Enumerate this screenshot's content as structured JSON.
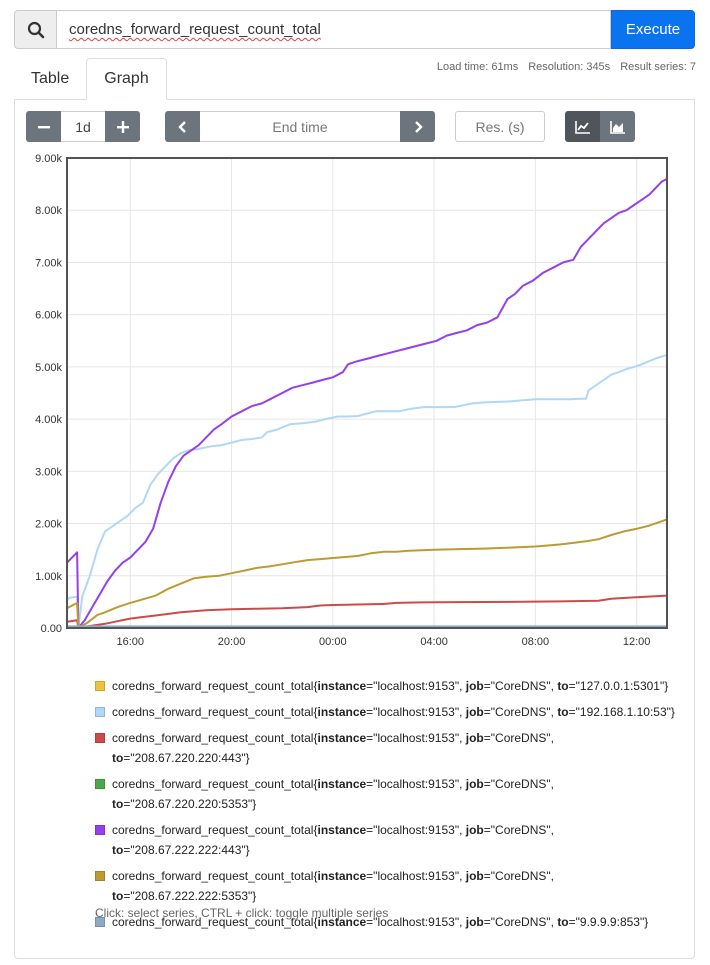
{
  "query": {
    "value": "coredns_forward_request_count_total",
    "execute_label": "Execute",
    "search_icon": "search-icon"
  },
  "tabs": [
    {
      "label": "Table",
      "active": false
    },
    {
      "label": "Graph",
      "active": true
    }
  ],
  "stats": {
    "load_time": "Load time: 61ms",
    "resolution": "Resolution: 345s",
    "result_series": "Result series: 7"
  },
  "controls": {
    "range_value": "1d",
    "minus_label": "−",
    "plus_label": "+",
    "end_time_placeholder": "End time",
    "res_placeholder": "Res. (s)",
    "line_icon": "line-chart-icon",
    "stacked_icon": "area-chart-icon"
  },
  "chart_data": {
    "type": "line",
    "x_ticks": [
      "16:00",
      "20:00",
      "00:00",
      "04:00",
      "08:00",
      "12:00"
    ],
    "y_ticks": [
      "0.00",
      "1.00k",
      "2.00k",
      "3.00k",
      "4.00k",
      "5.00k",
      "6.00k",
      "7.00k",
      "8.00k",
      "9.00k"
    ],
    "x_range_hours": [
      13.5,
      37.2
    ],
    "ylim": [
      0,
      9000
    ],
    "grid": true,
    "series": [
      {
        "name": "127.0.0.1:5301",
        "color": "#edc240",
        "x": [
          13.5,
          13.95,
          14.0,
          14.5,
          37.2
        ],
        "y": [
          20,
          20,
          0,
          0,
          0
        ]
      },
      {
        "name": "192.168.1.10:53",
        "color": "#afd8f8",
        "x": [
          13.5,
          13.6,
          13.9,
          13.95,
          14.1,
          14.4,
          14.7,
          15.0,
          15.3,
          15.6,
          15.9,
          16.2,
          16.5,
          16.8,
          17.1,
          17.4,
          17.7,
          18.0,
          18.3,
          18.6,
          18.9,
          19.2,
          19.6,
          20.0,
          20.4,
          20.8,
          21.2,
          21.4,
          21.8,
          22.3,
          22.8,
          23.3,
          23.7,
          24.2,
          24.6,
          25.0,
          25.3,
          25.7,
          26.1,
          26.6,
          27.1,
          27.6,
          28.1,
          28.5,
          28.8,
          29.1,
          29.5,
          30.0,
          30.5,
          31.0,
          31.5,
          32.0,
          32.5,
          33.0,
          33.4,
          33.7,
          34.0,
          34.1,
          34.4,
          34.7,
          35.0,
          35.3,
          35.6,
          35.9,
          36.2,
          36.5,
          36.8,
          37.2
        ],
        "y": [
          530,
          580,
          600,
          0,
          600,
          1000,
          1500,
          1850,
          1950,
          2050,
          2150,
          2300,
          2400,
          2750,
          2950,
          3100,
          3250,
          3350,
          3400,
          3420,
          3450,
          3480,
          3500,
          3550,
          3600,
          3620,
          3650,
          3750,
          3800,
          3900,
          3920,
          3950,
          4000,
          4050,
          4050,
          4060,
          4100,
          4150,
          4150,
          4150,
          4200,
          4230,
          4230,
          4230,
          4230,
          4260,
          4300,
          4320,
          4330,
          4340,
          4360,
          4380,
          4380,
          4380,
          4380,
          4390,
          4390,
          4550,
          4650,
          4750,
          4850,
          4900,
          4960,
          5000,
          5050,
          5110,
          5170,
          5230
        ]
      },
      {
        "name": "208.67.220.220:443",
        "color": "#cb4b4b",
        "x": [
          13.5,
          13.9,
          13.95,
          14.3,
          15.0,
          15.5,
          16.0,
          16.5,
          17.0,
          17.5,
          18.0,
          18.5,
          19.0,
          19.5,
          20.0,
          21.0,
          22.0,
          23.0,
          23.5,
          24.0,
          25.0,
          26.0,
          26.5,
          27.5,
          29.0,
          31.0,
          33.0,
          34.5,
          35.0,
          36.0,
          37.2
        ],
        "y": [
          120,
          150,
          0,
          30,
          80,
          130,
          180,
          210,
          240,
          270,
          300,
          320,
          340,
          350,
          360,
          370,
          380,
          400,
          430,
          440,
          450,
          460,
          480,
          490,
          495,
          500,
          510,
          520,
          560,
          590,
          620
        ]
      },
      {
        "name": "208.67.220.220:5353",
        "color": "#4da74d",
        "x": [
          13.5,
          13.95,
          14.0,
          37.2
        ],
        "y": [
          10,
          10,
          0,
          0
        ]
      },
      {
        "name": "208.67.222.222:443",
        "color": "#9440ed",
        "x": [
          13.5,
          13.9,
          13.95,
          14.2,
          14.5,
          14.8,
          15.1,
          15.4,
          15.7,
          16.0,
          16.3,
          16.6,
          16.9,
          17.2,
          17.5,
          17.8,
          18.1,
          18.4,
          18.7,
          19.0,
          19.3,
          19.6,
          20.0,
          20.4,
          20.8,
          21.2,
          21.6,
          22.0,
          22.4,
          22.8,
          23.2,
          23.6,
          24.0,
          24.4,
          24.6,
          24.9,
          25.3,
          25.7,
          26.1,
          26.5,
          26.9,
          27.3,
          27.7,
          28.1,
          28.5,
          28.9,
          29.3,
          29.7,
          30.1,
          30.5,
          30.9,
          31.2,
          31.5,
          31.9,
          32.3,
          32.7,
          33.1,
          33.5,
          33.8,
          34.1,
          34.4,
          34.7,
          35.0,
          35.3,
          35.6,
          35.9,
          36.2,
          36.5,
          36.8,
          37.0,
          37.2
        ],
        "y": [
          1250,
          1450,
          0,
          150,
          400,
          650,
          900,
          1100,
          1250,
          1350,
          1500,
          1650,
          1900,
          2400,
          2800,
          3100,
          3300,
          3400,
          3500,
          3650,
          3800,
          3900,
          4050,
          4150,
          4250,
          4300,
          4400,
          4500,
          4600,
          4650,
          4700,
          4750,
          4800,
          4900,
          5050,
          5100,
          5150,
          5200,
          5250,
          5300,
          5350,
          5400,
          5450,
          5500,
          5600,
          5650,
          5700,
          5800,
          5850,
          5950,
          6300,
          6400,
          6550,
          6650,
          6800,
          6900,
          7000,
          7050,
          7300,
          7450,
          7600,
          7750,
          7850,
          7950,
          8000,
          8100,
          8200,
          8300,
          8450,
          8550,
          8600
        ]
      },
      {
        "name": "208.67.222.222:5353",
        "color": "#bd9b33",
        "x": [
          13.5,
          13.9,
          13.95,
          14.3,
          14.7,
          15.0,
          15.5,
          16.0,
          16.5,
          17.0,
          17.5,
          18.0,
          18.5,
          19.0,
          19.5,
          20.0,
          20.5,
          21.0,
          21.5,
          22.0,
          22.5,
          23.0,
          23.5,
          24.0,
          24.5,
          25.0,
          25.5,
          26.0,
          26.5,
          27.0,
          27.5,
          28.0,
          29.0,
          30.0,
          31.0,
          32.0,
          32.5,
          33.0,
          33.5,
          34.0,
          34.5,
          35.0,
          35.5,
          36.0,
          36.5,
          37.2
        ],
        "y": [
          380,
          480,
          0,
          100,
          250,
          300,
          400,
          480,
          550,
          620,
          750,
          850,
          950,
          980,
          1000,
          1050,
          1100,
          1150,
          1180,
          1220,
          1260,
          1300,
          1320,
          1340,
          1360,
          1380,
          1430,
          1460,
          1460,
          1480,
          1490,
          1500,
          1510,
          1520,
          1540,
          1560,
          1580,
          1600,
          1630,
          1660,
          1700,
          1780,
          1850,
          1900,
          1960,
          2080
        ]
      },
      {
        "name": "9.9.9.9:853",
        "color": "#8cacc6",
        "x": [
          13.5,
          13.95,
          14.0,
          37.2
        ],
        "y": [
          30,
          30,
          30,
          30
        ]
      }
    ]
  },
  "legend": {
    "items": [
      {
        "color": "#edc240",
        "metric": "coredns_forward_request_count_total{",
        "k1": "instance",
        "v1": "=\"localhost:9153\", ",
        "k2": "job",
        "v2": "=\"CoreDNS\", ",
        "k3": "to",
        "v3": "=\"127.0.0.1:5301\"}"
      },
      {
        "color": "#afd8f8",
        "metric": "coredns_forward_request_count_total{",
        "k1": "instance",
        "v1": "=\"localhost:9153\", ",
        "k2": "job",
        "v2": "=\"CoreDNS\", ",
        "k3": "to",
        "v3": "=\"192.168.1.10:53\"}"
      },
      {
        "color": "#cb4b4b",
        "metric": "coredns_forward_request_count_total{",
        "k1": "instance",
        "v1": "=\"localhost:9153\", ",
        "k2": "job",
        "v2": "=\"CoreDNS\", ",
        "k3": "to",
        "v3": "=\"208.67.220.220:443\"}"
      },
      {
        "color": "#4da74d",
        "metric": "coredns_forward_request_count_total{",
        "k1": "instance",
        "v1": "=\"localhost:9153\", ",
        "k2": "job",
        "v2": "=\"CoreDNS\", ",
        "k3": "to",
        "v3": "=\"208.67.220.220:5353\"}"
      },
      {
        "color": "#9440ed",
        "metric": "coredns_forward_request_count_total{",
        "k1": "instance",
        "v1": "=\"localhost:9153\", ",
        "k2": "job",
        "v2": "=\"CoreDNS\", ",
        "k3": "to",
        "v3": "=\"208.67.222.222:443\"}"
      },
      {
        "color": "#bd9b33",
        "metric": "coredns_forward_request_count_total{",
        "k1": "instance",
        "v1": "=\"localhost:9153\", ",
        "k2": "job",
        "v2": "=\"CoreDNS\", ",
        "k3": "to",
        "v3": "=\"208.67.222.222:5353\"}"
      },
      {
        "color": "#8cacc6",
        "metric": "coredns_forward_request_count_total{",
        "k1": "instance",
        "v1": "=\"localhost:9153\", ",
        "k2": "job",
        "v2": "=\"CoreDNS\", ",
        "k3": "to",
        "v3": "=\"9.9.9.9:853\"}"
      }
    ],
    "hint": "Click: select series, CTRL + click: toggle multiple series"
  }
}
